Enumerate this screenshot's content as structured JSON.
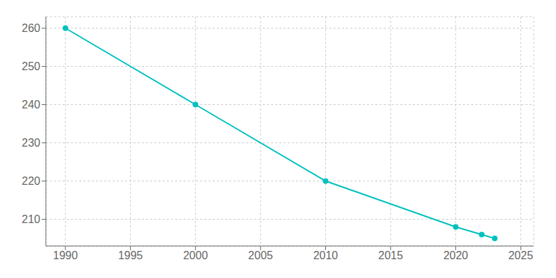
{
  "chart_data": {
    "type": "line",
    "x": [
      1990,
      2000,
      2010,
      2020,
      2022,
      2023
    ],
    "values": [
      260,
      240,
      220,
      208,
      206,
      205
    ],
    "color": "#00C0C0",
    "marker": "circle",
    "xlim": [
      1988.5,
      2026
    ],
    "ylim": [
      203,
      263
    ],
    "xticks": [
      1990,
      1995,
      2000,
      2005,
      2010,
      2015,
      2020,
      2025
    ],
    "yticks": [
      210,
      220,
      230,
      240,
      250,
      260
    ],
    "grid": true
  }
}
